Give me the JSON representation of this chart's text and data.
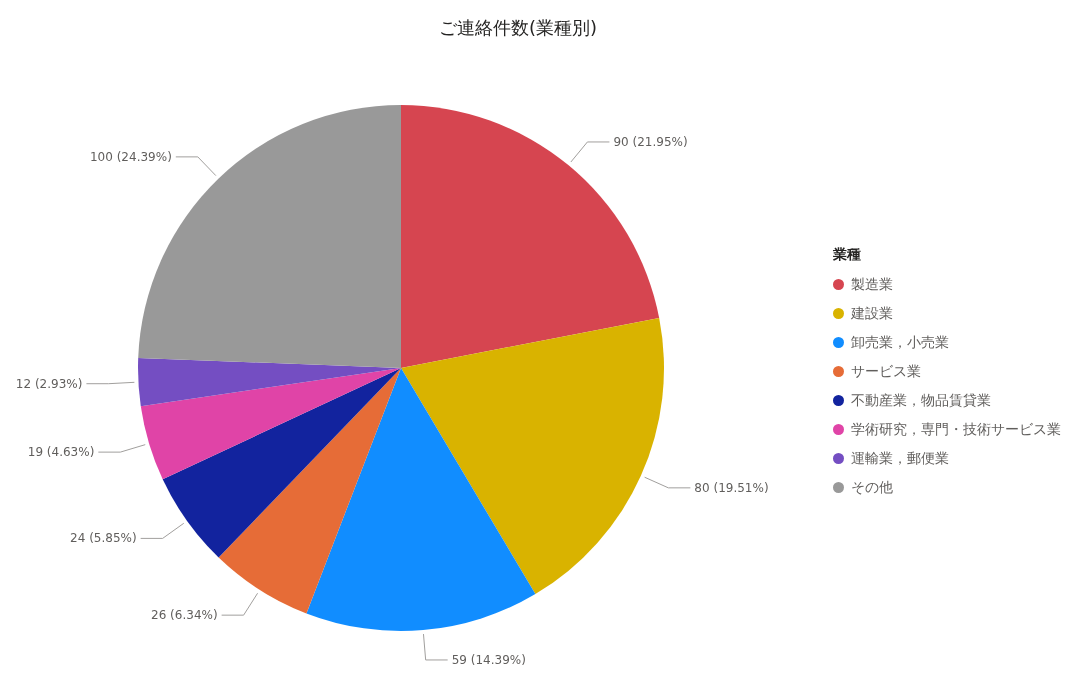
{
  "chart_data": {
    "type": "pie",
    "title": "ご連絡件数(業種別)",
    "legend_title": "業種",
    "legend": "right",
    "categories": [
      "製造業",
      "建設業",
      "卸売業，小売業",
      "サービス業",
      "不動産業，物品賃貸業",
      "学術研究，専門・技術サービス業",
      "運輸業，郵便業",
      "その他"
    ],
    "values": [
      90,
      80,
      59,
      26,
      24,
      19,
      12,
      100
    ],
    "colors": [
      "#d64550",
      "#d9b300",
      "#118dff",
      "#e66c37",
      "#12239e",
      "#e044a7",
      "#744ec2",
      "#999999"
    ],
    "value_labels": [
      "90 (21.95%)",
      "80 (19.51%)",
      "59 (14.39%)",
      "26 (6.34%)",
      "24 (5.85%)",
      "19 (4.63%)",
      "12 (2.93%)",
      "100 (24.39%)"
    ]
  }
}
